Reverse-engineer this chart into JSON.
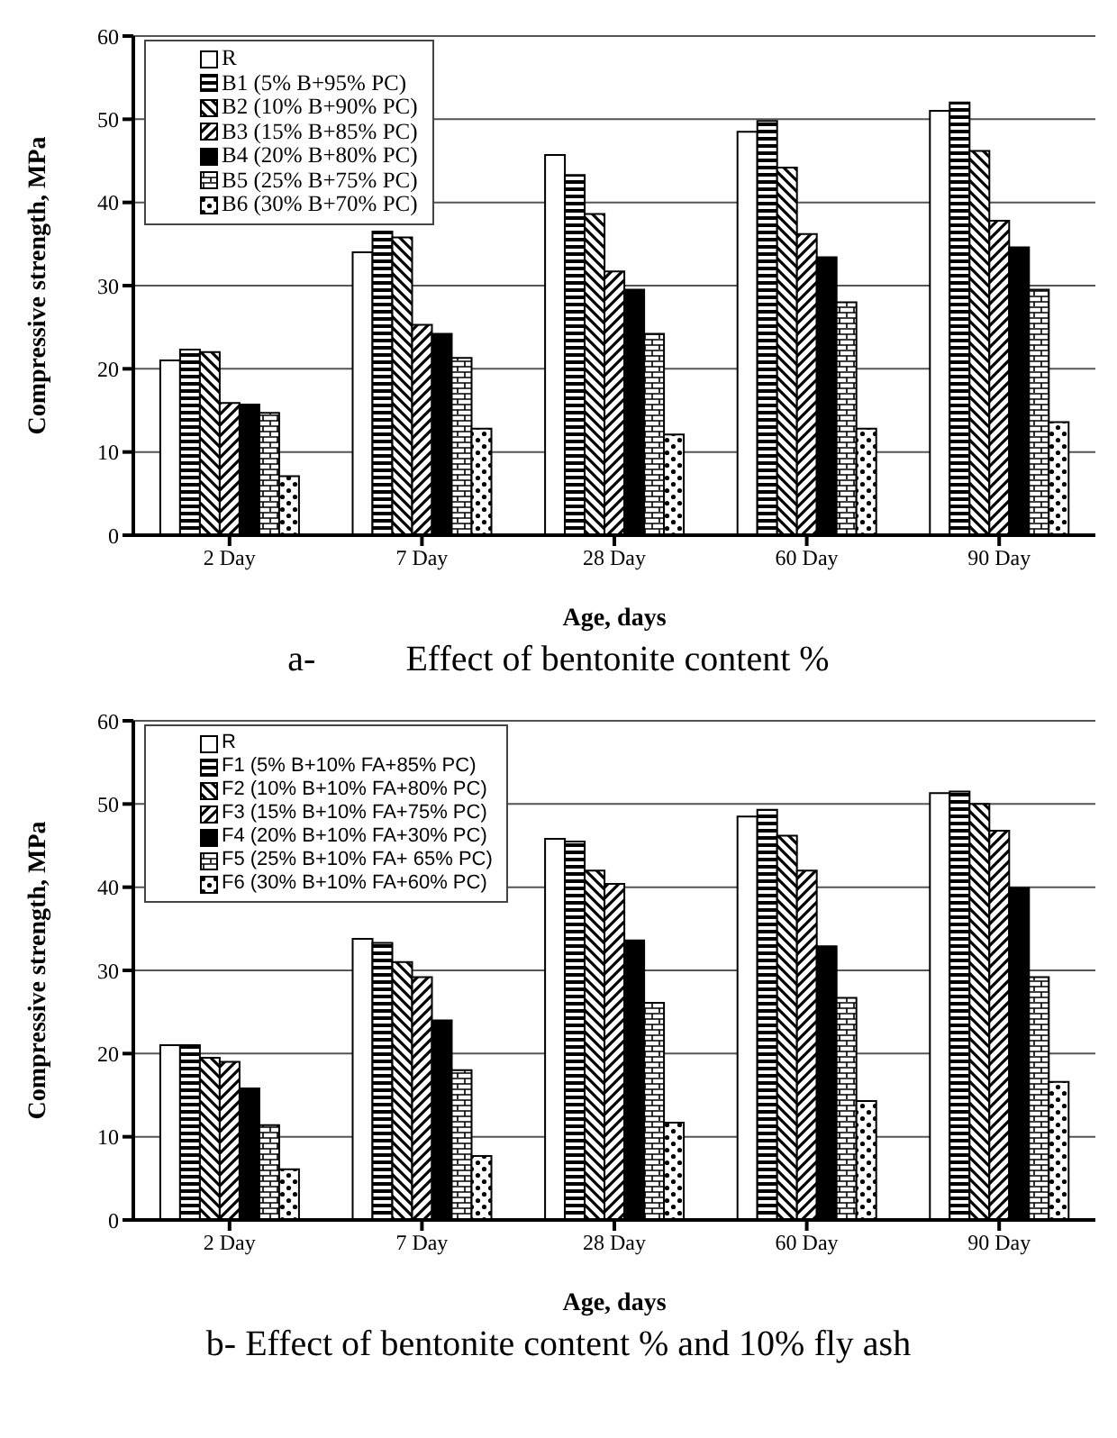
{
  "chart_data": [
    {
      "type": "bar",
      "title": "a-          Effect of bentonite content %",
      "xlabel": "Age, days",
      "ylabel": "Compressive strength, MPa",
      "categories": [
        "2 Day",
        "7 Day",
        "28 Day",
        "60 Day",
        "90 Day"
      ],
      "ylim": [
        0,
        60
      ],
      "yticks": [
        0,
        10,
        20,
        30,
        40,
        50,
        60
      ],
      "grid": "y",
      "legend": "top left",
      "series": [
        {
          "name": "R",
          "color": "#ffffff",
          "values": [
            21,
            34,
            45.7,
            48.5,
            51
          ]
        },
        {
          "name": "B1 (5% B+95% PC)",
          "color": "#000000",
          "values": [
            22.3,
            36.5,
            43.3,
            49.8,
            52
          ]
        },
        {
          "name": "B2 (10% B+90% PC)",
          "color": "#000000",
          "values": [
            22,
            35.8,
            38.6,
            44.2,
            46.2
          ]
        },
        {
          "name": "B3 (15% B+85% PC)",
          "color": "#000000",
          "values": [
            15.9,
            25.3,
            31.7,
            36.2,
            37.8
          ]
        },
        {
          "name": "B4 (20% B+80% PC)",
          "color": "#000000",
          "values": [
            15.7,
            24.2,
            29.5,
            33.4,
            34.6
          ]
        },
        {
          "name": "B5 (25% B+75% PC)",
          "color": "#000000",
          "values": [
            14.7,
            21.3,
            24.2,
            28,
            29.5
          ]
        },
        {
          "name": "B6 (30% B+70% PC)",
          "color": "#000000",
          "values": [
            7.1,
            12.8,
            12.1,
            12.8,
            13.6
          ]
        }
      ]
    },
    {
      "type": "bar",
      "title": "b- Effect of bentonite content % and 10% fly ash",
      "xlabel": "Age, days",
      "ylabel": "Compressive strength, MPa",
      "categories": [
        "2 Day",
        "7 Day",
        "28 Day",
        "60 Day",
        "90 Day"
      ],
      "ylim": [
        0,
        60
      ],
      "yticks": [
        0,
        10,
        20,
        30,
        40,
        50,
        60
      ],
      "grid": "y",
      "legend": "top left",
      "series": [
        {
          "name": "R",
          "color": "#ffffff",
          "values": [
            21,
            33.8,
            45.8,
            48.5,
            51.3
          ]
        },
        {
          "name": "F1 (5% B+10% FA+85% PC)",
          "color": "#000000",
          "values": [
            21,
            33.3,
            45.5,
            49.3,
            51.5
          ]
        },
        {
          "name": "F2 (10% B+10% FA+80% PC)",
          "color": "#000000",
          "values": [
            19.5,
            31,
            42,
            46.2,
            50
          ]
        },
        {
          "name": "F3 (15% B+10% FA+75% PC)",
          "color": "#000000",
          "values": [
            19,
            29.2,
            40.4,
            42,
            46.8
          ]
        },
        {
          "name": "F4 (20% B+10% FA+30% PC)",
          "color": "#000000",
          "values": [
            15.8,
            24,
            33.6,
            32.9,
            39.9
          ]
        },
        {
          "name": "F5 (25% B+10% FA+ 65% PC)",
          "color": "#000000",
          "values": [
            11.4,
            18,
            26.1,
            26.7,
            29.2
          ]
        },
        {
          "name": "F6 (30% B+10% FA+60% PC)",
          "color": "#000000",
          "values": [
            6.1,
            7.7,
            11.7,
            14.3,
            16.6
          ]
        }
      ]
    }
  ]
}
